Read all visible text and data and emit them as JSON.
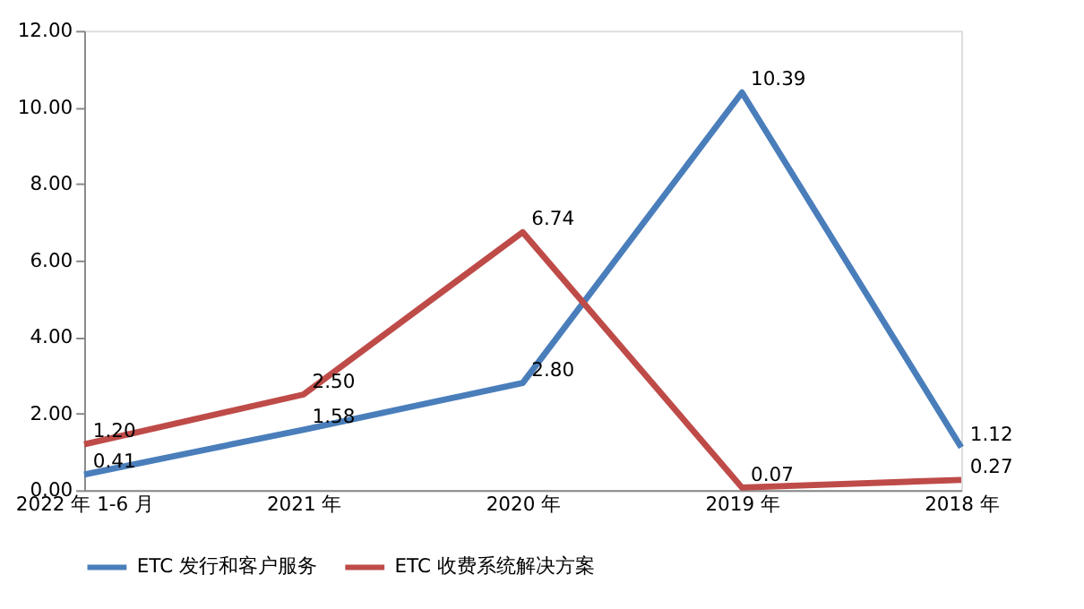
{
  "chart_data": {
    "type": "line",
    "categories": [
      "2022 年 1-6 月",
      "2021 年",
      "2020 年",
      "2019 年",
      "2018 年"
    ],
    "series": [
      {
        "name": "ETC 发行和客户服务",
        "color": "#4a7ebb",
        "values": [
          0.41,
          1.58,
          2.8,
          10.39,
          1.12
        ],
        "value_labels": [
          "0.41",
          "1.58",
          "2.80",
          "10.39",
          "1.12"
        ]
      },
      {
        "name": "ETC 收费系统解决方案",
        "color": "#be4b48",
        "values": [
          1.2,
          2.5,
          6.74,
          0.07,
          0.27
        ],
        "value_labels": [
          "1.20",
          "2.50",
          "6.74",
          "0.07",
          "0.27"
        ]
      }
    ],
    "ylim": [
      0,
      12
    ],
    "yticks": [
      {
        "value": 0,
        "label": "0.00"
      },
      {
        "value": 2,
        "label": "2.00"
      },
      {
        "value": 4,
        "label": "4.00"
      },
      {
        "value": 6,
        "label": "6.00"
      },
      {
        "value": 8,
        "label": "8.00"
      },
      {
        "value": 10,
        "label": "10.00"
      },
      {
        "value": 12,
        "label": "12.00"
      }
    ],
    "grid": false,
    "legend": "bottom",
    "marker": "none",
    "line_style": "solid"
  }
}
